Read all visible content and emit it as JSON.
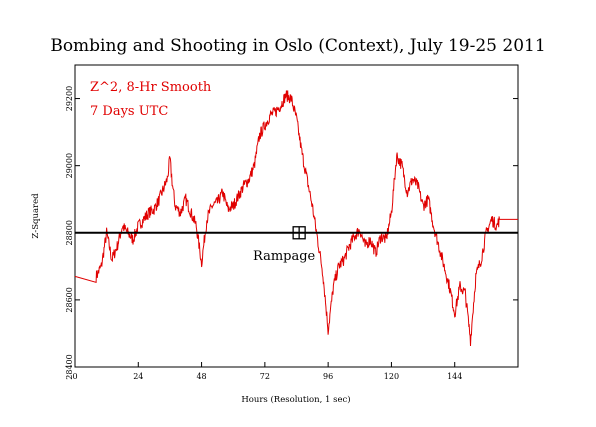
{
  "chart_data": {
    "type": "line",
    "title": "Bombing and Shooting in Oslo (Context), July 19-25 2011",
    "xlabel": "Hours (Resolution, 1 sec)",
    "ylabel": "Z-Squared",
    "xlim": [
      0,
      168
    ],
    "ylim": [
      28400,
      29300
    ],
    "x_ticks": [
      0,
      24,
      48,
      72,
      96,
      120,
      144
    ],
    "y_ticks": [
      28400,
      28600,
      28800,
      29000,
      29200
    ],
    "grid": false,
    "annotations": [
      "Z^2, 8-Hr Smooth",
      "7 Days UTC"
    ],
    "reference_line": 28800,
    "event": {
      "label": "Rampage",
      "x": 85,
      "y": 28800
    },
    "line_color": "#e00000",
    "reference_color": "#000000",
    "series": [
      {
        "x": [
          0,
          8,
          10,
          12,
          14,
          16,
          18,
          20,
          22,
          24,
          26,
          28,
          30,
          32,
          34,
          35,
          36,
          37,
          38,
          40,
          42,
          44,
          46,
          48,
          50,
          52,
          54,
          56,
          58,
          60,
          62,
          64,
          66,
          68,
          70,
          72,
          74,
          76,
          78,
          80,
          82,
          84,
          86,
          88,
          90,
          92,
          94,
          96,
          98,
          100,
          102,
          104,
          106,
          108,
          110,
          112,
          114,
          116,
          118,
          120,
          122,
          124,
          126,
          128,
          130,
          132,
          134,
          136,
          138,
          140,
          142,
          144,
          146,
          148,
          150,
          152,
          154,
          156,
          158,
          160,
          161,
          168
        ],
        "y": [
          28670,
          28670,
          28700,
          28800,
          28720,
          28760,
          28820,
          28800,
          28780,
          28820,
          28840,
          28860,
          28870,
          28900,
          28940,
          28960,
          29020,
          28940,
          28880,
          28860,
          28900,
          28860,
          28820,
          28710,
          28840,
          28880,
          28890,
          28920,
          28870,
          28880,
          28910,
          28940,
          28960,
          29000,
          29090,
          29120,
          29150,
          29160,
          29180,
          29210,
          29200,
          29140,
          29040,
          28960,
          28880,
          28780,
          28680,
          28510,
          28640,
          28700,
          28720,
          28760,
          28790,
          28810,
          28760,
          28780,
          28740,
          28790,
          28780,
          28860,
          29030,
          29000,
          28920,
          28960,
          28940,
          28880,
          28900,
          28820,
          28760,
          28700,
          28640,
          28560,
          28640,
          28620,
          28480,
          28670,
          28720,
          28800,
          28840,
          28820,
          28840,
          28840
        ]
      }
    ]
  }
}
